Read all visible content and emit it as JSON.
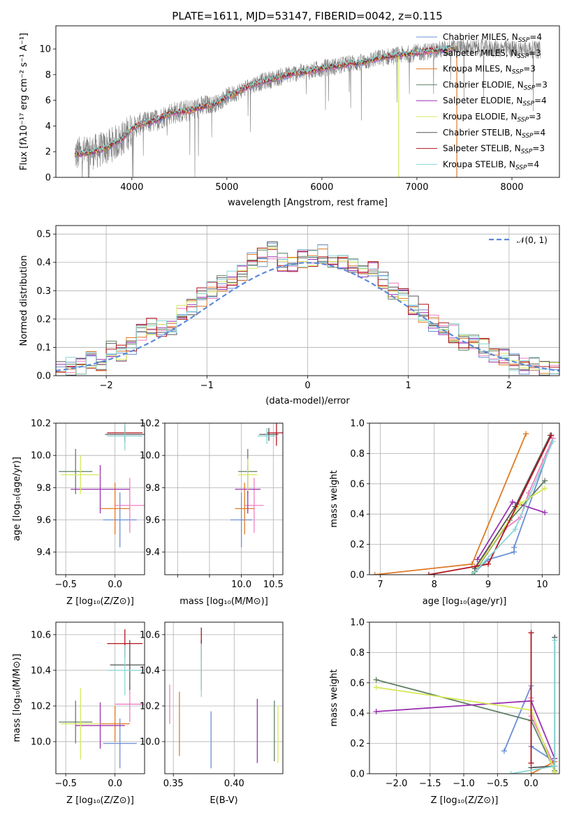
{
  "figure": {
    "title": "PLATE=1611, MJD=53147, FIBERID=0042, z=0.115"
  },
  "colors": {
    "Chabrier MILES": "#6a8fd6",
    "Salpeter MILES": "#f07fbf",
    "Kroupa MILES": "#e07a25",
    "Chabrier ELODIE": "#5f7f62",
    "Salpeter ELODIE": "#9b32b0",
    "Kroupa ELODIE": "#d8e85a",
    "Chabrier STELIB": "#555555",
    "Salpeter STELIB": "#b0151c",
    "Kroupa STELIB": "#8ad6d6",
    "data": "#808080",
    "normal": "#5b8ad8"
  },
  "chart_data": [
    {
      "id": "spectrum",
      "type": "line",
      "xlabel": "wavelength [Angstrom, rest frame]",
      "ylabel": "Flux [f$_\\lambda$10$^{-17}$ erg cm$^{-2}$ s$^{-1}$ A$^{-1}$]",
      "ylabel_parts": [
        "Flux [f",
        "λ",
        "10",
        "−17",
        " erg cm",
        "−2",
        " s",
        "−1",
        " A",
        "−1",
        "]"
      ],
      "xlim": [
        3200,
        8500
      ],
      "ylim": [
        0,
        11.8
      ],
      "xticks": [
        4000,
        5000,
        6000,
        7000,
        8000
      ],
      "yticks": [
        0,
        2,
        4,
        6,
        8,
        10
      ],
      "continuum": {
        "x": [
          3400,
          3500,
          3600,
          3700,
          3800,
          3900,
          4000,
          4100,
          4200,
          4300,
          4400,
          4500,
          4600,
          4700,
          4800,
          4900,
          5000,
          5100,
          5200,
          5300,
          5400,
          5500,
          5600,
          5700,
          5800,
          5900,
          6000,
          6100,
          6200,
          6300,
          6400,
          6500,
          6600,
          6700,
          6800,
          6900,
          7000,
          7100,
          7200,
          7300,
          7400
        ],
        "y": [
          1.8,
          1.9,
          2.0,
          2.2,
          2.6,
          3.0,
          3.8,
          4.2,
          4.3,
          4.6,
          5.0,
          5.1,
          5.2,
          5.4,
          5.6,
          5.8,
          6.3,
          6.6,
          7.0,
          7.3,
          7.5,
          7.7,
          7.9,
          8.1,
          8.2,
          8.3,
          8.5,
          8.6,
          8.7,
          8.9,
          8.9,
          9.1,
          9.3,
          9.4,
          9.5,
          9.6,
          9.7,
          9.8,
          9.9,
          10.0,
          10.1
        ]
      },
      "data_range": [
        3400,
        8300
      ],
      "models_range": [
        3400,
        7400
      ],
      "legend": [
        {
          "label": "Chabrier MILES, N",
          "sub": "SSP",
          "n": "=4",
          "color": "#6a8fd6"
        },
        {
          "label": "Salpeter MILES, N",
          "sub": "SSP",
          "n": "=3",
          "color": "#f07fbf"
        },
        {
          "label": "Kroupa MILES, N",
          "sub": "SSP",
          "n": "=3",
          "color": "#e07a25"
        },
        {
          "label": "Chabrier ELODIE, N",
          "sub": "SSP",
          "n": "=3",
          "color": "#5f7f62"
        },
        {
          "label": "Salpeter ELODIE, N",
          "sub": "SSP",
          "n": "=4",
          "color": "#9b32b0"
        },
        {
          "label": "Kroupa ELODIE, N",
          "sub": "SSP",
          "n": "=3",
          "color": "#d8e85a"
        },
        {
          "label": "Chabrier STELIB, N",
          "sub": "SSP",
          "n": "=4",
          "color": "#555555"
        },
        {
          "label": "Salpeter STELIB, N",
          "sub": "SSP",
          "n": "=3",
          "color": "#b0151c"
        },
        {
          "label": "Kroupa STELIB, N",
          "sub": "SSP",
          "n": "=4",
          "color": "#8ad6d6"
        }
      ]
    },
    {
      "id": "residuals",
      "type": "line",
      "xlabel": "(data-model)/error",
      "ylabel": "Normed distribution",
      "xlim": [
        -2.5,
        2.5
      ],
      "ylim": [
        0,
        0.53
      ],
      "xticks": [
        -2,
        -1,
        0,
        1,
        2
      ],
      "xtick_labels": [
        "−2",
        "−1",
        "0",
        "1",
        "2"
      ],
      "yticks": [
        0.0,
        0.1,
        0.2,
        0.3,
        0.4,
        0.5
      ],
      "ytick_labels": [
        "0.0",
        "0.1",
        "0.2",
        "0.3",
        "0.4",
        "0.5"
      ],
      "grid": true,
      "legend": [
        {
          "label": "𝒩(0, 1)",
          "color": "#5b8ad8",
          "position": "top-right"
        }
      ],
      "bin_edges_range": [
        -2.5,
        2.5
      ],
      "bins": 50,
      "base_hist": [
        0.02,
        0.03,
        0.04,
        0.06,
        0.05,
        0.09,
        0.08,
        0.1,
        0.15,
        0.17,
        0.16,
        0.18,
        0.22,
        0.25,
        0.28,
        0.3,
        0.32,
        0.34,
        0.36,
        0.4,
        0.42,
        0.44,
        0.4,
        0.39,
        0.41,
        0.42,
        0.43,
        0.4,
        0.39,
        0.4,
        0.38,
        0.37,
        0.34,
        0.3,
        0.28,
        0.25,
        0.22,
        0.19,
        0.17,
        0.15,
        0.12,
        0.11,
        0.1,
        0.08,
        0.07,
        0.05,
        0.04,
        0.03,
        0.02,
        0.02
      ]
    },
    {
      "id": "age_vs_Z",
      "type": "scatter",
      "xlabel": "Z [log$_{10}$(Z/Z$_\\odot$)]",
      "ylabel": "age  [log$_{10}$(age/yr)]",
      "xlim": [
        -0.6,
        0.3
      ],
      "ylim": [
        9.26,
        10.2
      ],
      "xticks": [
        -0.5,
        0.0
      ],
      "xtick_labels": [
        "−0.5",
        "0.0"
      ],
      "yticks": [
        9.4,
        9.6,
        9.8,
        10.0,
        10.2
      ],
      "ytick_labels": [
        "9.4",
        "9.6",
        "9.8",
        "10.0",
        "10.2"
      ],
      "grid": true,
      "points": [
        {
          "model": "Chabrier MILES",
          "x": 0.05,
          "y": 9.6,
          "xerr": 0.17,
          "yerr": 0.17
        },
        {
          "model": "Salpeter MILES",
          "x": 0.15,
          "y": 9.69,
          "xerr": 0.15,
          "yerr": 0.17
        },
        {
          "model": "Kroupa MILES",
          "x": 0.0,
          "y": 9.67,
          "xerr": 0.15,
          "yerr": 0.16
        },
        {
          "model": "Chabrier ELODIE",
          "x": -0.4,
          "y": 9.9,
          "xerr": 0.17,
          "yerr": 0.14
        },
        {
          "model": "Salpeter ELODIE",
          "x": -0.15,
          "y": 9.79,
          "xerr": 0.3,
          "yerr": 0.15
        },
        {
          "model": "Kroupa ELODIE",
          "x": -0.35,
          "y": 9.88,
          "xerr": 0.2,
          "yerr": 0.12
        },
        {
          "model": "Chabrier STELIB",
          "x": 0.1,
          "y": 10.13,
          "xerr": 0.2,
          "yerr": 0.05
        },
        {
          "model": "Salpeter STELIB",
          "x": 0.1,
          "y": 10.14,
          "xerr": 0.18,
          "yerr": 0.05
        },
        {
          "model": "Kroupa STELIB",
          "x": 0.1,
          "y": 10.12,
          "xerr": 0.18,
          "yerr": 0.09
        }
      ]
    },
    {
      "id": "age_vs_mass",
      "type": "scatter",
      "xlabel": "mass [log$_{10}$(M/M$_\\odot$)]",
      "ylabel": "",
      "xlim": [
        8.8,
        10.65
      ],
      "ylim": [
        9.26,
        10.2
      ],
      "xticks": [
        9.0,
        9.5,
        10.0,
        10.5
      ],
      "xtick_labels": [
        "",
        "",
        "10.0",
        "10.5"
      ],
      "yticks": [
        9.4,
        9.6,
        9.8,
        10.0,
        10.2
      ],
      "ytick_labels": [
        "9.4",
        "9.6",
        "9.8",
        "10.0",
        "10.2"
      ],
      "grid": true,
      "points": [
        {
          "model": "Chabrier MILES",
          "x": 10.0,
          "y": 9.6,
          "xerr": 0.17,
          "yerr": 0.17
        },
        {
          "model": "Salpeter MILES",
          "x": 10.2,
          "y": 9.69,
          "xerr": 0.15,
          "yerr": 0.17
        },
        {
          "model": "Kroupa MILES",
          "x": 10.05,
          "y": 9.67,
          "xerr": 0.15,
          "yerr": 0.16
        },
        {
          "model": "Chabrier ELODIE",
          "x": 10.1,
          "y": 9.9,
          "xerr": 0.15,
          "yerr": 0.14
        },
        {
          "model": "Salpeter ELODIE",
          "x": 10.1,
          "y": 9.79,
          "xerr": 0.2,
          "yerr": 0.15
        },
        {
          "model": "Kroupa ELODIE",
          "x": 10.1,
          "y": 9.88,
          "xerr": 0.15,
          "yerr": 0.1
        },
        {
          "model": "Chabrier STELIB",
          "x": 10.43,
          "y": 10.13,
          "xerr": 0.15,
          "yerr": 0.04
        },
        {
          "model": "Salpeter STELIB",
          "x": 10.55,
          "y": 10.14,
          "xerr": 0.15,
          "yerr": 0.08
        },
        {
          "model": "Kroupa STELIB",
          "x": 10.4,
          "y": 10.12,
          "xerr": 0.15,
          "yerr": 0.05
        }
      ]
    },
    {
      "id": "weight_vs_age",
      "type": "line",
      "xlabel": "age  [log$_{10}$(age/yr)]",
      "ylabel": "mass weight",
      "xlim": [
        6.8,
        10.32
      ],
      "ylim": [
        0,
        1.0
      ],
      "xticks": [
        7,
        8,
        9,
        10
      ],
      "yticks": [
        0.0,
        0.2,
        0.4,
        0.6,
        0.8,
        1.0
      ],
      "ytick_labels": [
        "0.0",
        "0.2",
        "0.4",
        "0.6",
        "0.8",
        "1.0"
      ],
      "grid": true,
      "series": [
        {
          "model": "Chabrier MILES",
          "x": [
            8.7,
            9.0,
            9.48,
            9.48,
            10.2
          ],
          "y": [
            0.0,
            0.1,
            0.15,
            0.18,
            0.9
          ]
        },
        {
          "model": "Salpeter MILES",
          "x": [
            8.75,
            9.3,
            9.6,
            9.75,
            10.2
          ],
          "y": [
            0.05,
            0.3,
            0.38,
            0.54,
            0.9
          ]
        },
        {
          "model": "Kroupa MILES",
          "x": [
            6.9,
            8.7,
            9.7
          ],
          "y": [
            0.0,
            0.07,
            0.93
          ]
        },
        {
          "model": "Chabrier ELODIE",
          "x": [
            8.75,
            9.4,
            10.05
          ],
          "y": [
            0.02,
            0.36,
            0.62
          ]
        },
        {
          "model": "Salpeter ELODIE",
          "x": [
            8.8,
            9.45,
            10.05
          ],
          "y": [
            0.1,
            0.48,
            0.41
          ]
        },
        {
          "model": "Kroupa ELODIE",
          "x": [
            8.7,
            9.6,
            10.05
          ],
          "y": [
            0.0,
            0.47,
            0.57
          ]
        },
        {
          "model": "Chabrier STELIB",
          "x": [
            8.75,
            9.5,
            10.15
          ],
          "y": [
            0.04,
            0.45,
            0.92
          ]
        },
        {
          "model": "Salpeter STELIB",
          "x": [
            7.9,
            9.0,
            10.17
          ],
          "y": [
            0.0,
            0.07,
            0.92
          ]
        },
        {
          "model": "Kroupa STELIB",
          "x": [
            8.7,
            9.5,
            10.2
          ],
          "y": [
            0.0,
            0.3,
            0.88
          ]
        }
      ]
    },
    {
      "id": "mass_vs_Z",
      "type": "scatter",
      "xlabel": "Z [log$_{10}$(Z/Z$_\\odot$)]",
      "ylabel": "mass [log$_{10}$(M/M$_\\odot$)]",
      "xlim": [
        -0.6,
        0.3
      ],
      "ylim": [
        9.82,
        10.67
      ],
      "xticks": [
        -0.5,
        0.0
      ],
      "xtick_labels": [
        "−0.5",
        "0.0"
      ],
      "yticks": [
        10.0,
        10.2,
        10.4,
        10.6
      ],
      "ytick_labels": [
        "10.0",
        "10.2",
        "10.4",
        "10.6"
      ],
      "grid": true,
      "points": [
        {
          "model": "Chabrier MILES",
          "x": 0.05,
          "y": 9.99,
          "xerr": 0.17,
          "yerr": 0.14
        },
        {
          "model": "Salpeter MILES",
          "x": 0.15,
          "y": 10.21,
          "xerr": 0.15,
          "yerr": 0.1
        },
        {
          "model": "Kroupa MILES",
          "x": 0.0,
          "y": 10.1,
          "xerr": 0.15,
          "yerr": 0.1
        },
        {
          "model": "Chabrier ELODIE",
          "x": -0.4,
          "y": 10.11,
          "xerr": 0.17,
          "yerr": 0.12
        },
        {
          "model": "Salpeter ELODIE",
          "x": -0.15,
          "y": 10.09,
          "xerr": 0.25,
          "yerr": 0.13
        },
        {
          "model": "Kroupa ELODIE",
          "x": -0.35,
          "y": 10.1,
          "xerr": 0.2,
          "yerr": 0.2
        },
        {
          "model": "Chabrier STELIB",
          "x": 0.15,
          "y": 10.43,
          "xerr": 0.2,
          "yerr": 0.14
        },
        {
          "model": "Salpeter STELIB",
          "x": 0.1,
          "y": 10.55,
          "xerr": 0.18,
          "yerr": 0.08
        },
        {
          "model": "Kroupa STELIB",
          "x": 0.1,
          "y": 10.4,
          "xerr": 0.18,
          "yerr": 0.14
        }
      ]
    },
    {
      "id": "mass_vs_EBV",
      "type": "scatter",
      "xlabel": "E(B-V)",
      "ylabel": "",
      "xlim": [
        0.343,
        0.44
      ],
      "ylim": [
        9.82,
        10.67
      ],
      "xticks": [
        0.35,
        0.4
      ],
      "xtick_labels": [
        "0.35",
        "0.40"
      ],
      "yticks": [
        10.0,
        10.2,
        10.4,
        10.6
      ],
      "ytick_labels": [
        "10.0",
        "10.2",
        "10.4",
        "10.6"
      ],
      "grid": true,
      "points": [
        {
          "model": "Chabrier MILES",
          "x": 0.381,
          "y": 10.01,
          "xerr": 0,
          "yerr": 0.16
        },
        {
          "model": "Salpeter MILES",
          "x": 0.347,
          "y": 10.21,
          "xerr": 0,
          "yerr": 0.11
        },
        {
          "model": "Kroupa MILES",
          "x": 0.355,
          "y": 10.1,
          "xerr": 0,
          "yerr": 0.18
        },
        {
          "model": "Chabrier ELODIE",
          "x": 0.433,
          "y": 10.06,
          "xerr": 0,
          "yerr": 0.17
        },
        {
          "model": "Salpeter ELODIE",
          "x": 0.419,
          "y": 10.06,
          "xerr": 0,
          "yerr": 0.18
        },
        {
          "model": "Kroupa ELODIE",
          "x": 0.436,
          "y": 10.04,
          "xerr": 0,
          "yerr": 0.16
        },
        {
          "model": "Chabrier STELIB",
          "x": 0.373,
          "y": 10.43,
          "xerr": 0,
          "yerr": 0.14
        },
        {
          "model": "Salpeter STELIB",
          "x": 0.373,
          "y": 10.55,
          "xerr": 0,
          "yerr": 0.09
        },
        {
          "model": "Kroupa STELIB",
          "x": 0.373,
          "y": 10.4,
          "xerr": 0,
          "yerr": 0.15
        }
      ]
    },
    {
      "id": "weight_vs_Z",
      "type": "line",
      "xlabel": "Z [log$_{10}$(Z/Z$_\\odot$)]",
      "ylabel": "mass weight",
      "xlim": [
        -2.4,
        0.42
      ],
      "ylim": [
        0,
        1.0
      ],
      "xticks": [
        -2.0,
        -1.5,
        -1.0,
        -0.5,
        0.0
      ],
      "xtick_labels": [
        "−2.0",
        "−1.5",
        "−1.0",
        "−0.5",
        "0.0"
      ],
      "yticks": [
        0.0,
        0.2,
        0.4,
        0.6,
        0.8,
        1.0
      ],
      "ytick_labels": [
        "0.0",
        "0.2",
        "0.4",
        "0.6",
        "0.8",
        "1.0"
      ],
      "grid": true,
      "series": [
        {
          "model": "Chabrier MILES",
          "x": [
            -0.4,
            0.0,
            0.0,
            0.35,
            0.35
          ],
          "y": [
            0.15,
            0.58,
            0.18,
            0.08,
            0.01
          ]
        },
        {
          "model": "Salpeter MILES",
          "x": [
            0.0,
            0.0,
            0.35
          ],
          "y": [
            0.5,
            0.38,
            0.05
          ]
        },
        {
          "model": "Kroupa MILES",
          "x": [
            0.0,
            0.35
          ],
          "y": [
            0.0,
            0.08
          ]
        },
        {
          "model": "Chabrier ELODIE",
          "x": [
            -2.3,
            0.0,
            0.35
          ],
          "y": [
            0.62,
            0.35,
            0.02
          ]
        },
        {
          "model": "Salpeter ELODIE",
          "x": [
            -2.3,
            0.0,
            0.35
          ],
          "y": [
            0.41,
            0.48,
            0.1
          ]
        },
        {
          "model": "Kroupa ELODIE",
          "x": [
            -2.3,
            0.0,
            0.35
          ],
          "y": [
            0.57,
            0.42,
            0.01
          ]
        },
        {
          "model": "Chabrier STELIB",
          "x": [
            0.0,
            0.35,
            0.35
          ],
          "y": [
            0.04,
            0.05,
            0.9
          ]
        },
        {
          "model": "Salpeter STELIB",
          "x": [
            0.0,
            0.0
          ],
          "y": [
            0.07,
            0.93
          ]
        },
        {
          "model": "Kroupa STELIB",
          "x": [
            -0.3,
            0.35,
            0.35
          ],
          "y": [
            0.0,
            0.05,
            0.88
          ]
        }
      ]
    }
  ]
}
